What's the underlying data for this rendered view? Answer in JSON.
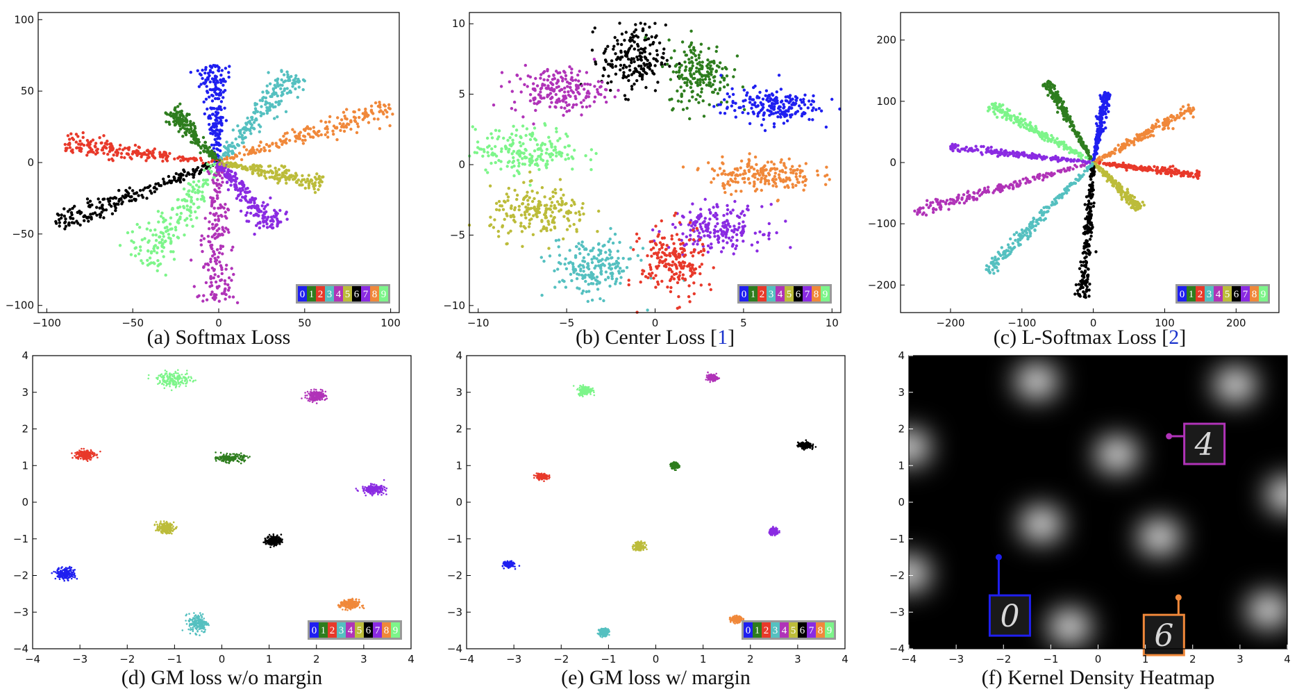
{
  "legend_digits": [
    "0",
    "1",
    "2",
    "3",
    "4",
    "5",
    "6",
    "7",
    "8",
    "9"
  ],
  "class_colors": [
    "#1f1ff0",
    "#2e7d1e",
    "#e8392a",
    "#55c0c0",
    "#b033b8",
    "#bcbc3a",
    "#000000",
    "#8a2be2",
    "#f0883a",
    "#7df58a"
  ],
  "chart_data": [
    {
      "id": "a",
      "type": "scatter",
      "caption": "(a) Softmax Loss",
      "caption_suffix": "",
      "xlim": [
        -105,
        105
      ],
      "ylim": [
        -105,
        105
      ],
      "xticks": [
        -100,
        -50,
        0,
        50,
        100
      ],
      "yticks": [
        100,
        50,
        0,
        -50,
        -100
      ],
      "tick_labels_x": [
        "−100",
        "−50",
        "0",
        "50",
        "100"
      ],
      "tick_labels_y": [
        "100",
        "50",
        "0",
        "−50",
        "−100"
      ],
      "legend": true,
      "clusters": [
        {
          "class": 0,
          "shape": "ray",
          "end": [
            -4,
            68
          ],
          "spread": 3.5
        },
        {
          "class": 3,
          "shape": "ray",
          "end": [
            45,
            63
          ],
          "spread": 4
        },
        {
          "class": 8,
          "shape": "ray",
          "end": [
            100,
            38
          ],
          "spread": 3.5
        },
        {
          "class": 1,
          "shape": "ray",
          "end": [
            -28,
            37
          ],
          "spread": 2.5
        },
        {
          "class": 2,
          "shape": "ray",
          "end": [
            -90,
            13
          ],
          "spread": 3
        },
        {
          "class": 6,
          "shape": "ray",
          "end": [
            -95,
            -42
          ],
          "spread": 3.5
        },
        {
          "class": 9,
          "shape": "ray",
          "end": [
            -45,
            -70
          ],
          "spread": 6
        },
        {
          "class": 4,
          "shape": "ray",
          "end": [
            -2,
            -98
          ],
          "spread": 5
        },
        {
          "class": 7,
          "shape": "ray",
          "end": [
            32,
            -46
          ],
          "spread": 4
        },
        {
          "class": 5,
          "shape": "ray",
          "end": [
            60,
            -15
          ],
          "spread": 3
        }
      ]
    },
    {
      "id": "b",
      "type": "scatter",
      "caption": "(b) Center Loss [",
      "caption_suffix": "1",
      "xlim": [
        -10.5,
        10.5
      ],
      "ylim": [
        -10.5,
        10.8
      ],
      "xticks": [
        -10,
        -5,
        0,
        5,
        10
      ],
      "yticks": [
        10,
        5,
        0,
        -5,
        -10
      ],
      "tick_labels_x": [
        "−10",
        "−5",
        "0",
        "5",
        "10"
      ],
      "tick_labels_y": [
        "10",
        "5",
        "0",
        "−5",
        "−10"
      ],
      "legend": true,
      "clusters": [
        {
          "class": 6,
          "shape": "blob",
          "center": [
            -1.2,
            7.5
          ],
          "spread": [
            0.9,
            1.2
          ]
        },
        {
          "class": 1,
          "shape": "blob",
          "center": [
            2.5,
            6.5
          ],
          "spread": [
            0.9,
            1.2
          ]
        },
        {
          "class": 4,
          "shape": "blob",
          "center": [
            -5.5,
            5.3
          ],
          "spread": [
            1.3,
            0.8
          ]
        },
        {
          "class": 0,
          "shape": "blob",
          "center": [
            6.5,
            4.2
          ],
          "spread": [
            1.4,
            0.6
          ]
        },
        {
          "class": 9,
          "shape": "blob",
          "center": [
            -7.2,
            1.0
          ],
          "spread": [
            1.5,
            0.8
          ]
        },
        {
          "class": 8,
          "shape": "blob",
          "center": [
            6.0,
            -0.7
          ],
          "spread": [
            1.5,
            0.6
          ]
        },
        {
          "class": 5,
          "shape": "blob",
          "center": [
            -6.5,
            -3.5
          ],
          "spread": [
            1.4,
            0.9
          ]
        },
        {
          "class": 7,
          "shape": "blob",
          "center": [
            3.5,
            -4.5
          ],
          "spread": [
            1.3,
            0.8
          ]
        },
        {
          "class": 3,
          "shape": "blob",
          "center": [
            -3.5,
            -7.3
          ],
          "spread": [
            1.2,
            1.0
          ]
        },
        {
          "class": 2,
          "shape": "blob",
          "center": [
            1.0,
            -7.0
          ],
          "spread": [
            0.9,
            1.3
          ]
        }
      ]
    },
    {
      "id": "c",
      "type": "scatter",
      "caption": "(c) L-Softmax Loss [",
      "caption_suffix": "2",
      "xlim": [
        -270,
        260
      ],
      "ylim": [
        -245,
        245
      ],
      "xticks": [
        -200,
        -100,
        0,
        100,
        200
      ],
      "yticks": [
        200,
        100,
        0,
        -100,
        -200
      ],
      "tick_labels_x": [
        "−200",
        "−100",
        "0",
        "100",
        "200"
      ],
      "tick_labels_y": [
        "200",
        "100",
        "0",
        "−100",
        "−200"
      ],
      "legend": true,
      "clusters": [
        {
          "class": 4,
          "shape": "ray",
          "end": [
            -250,
            -80
          ],
          "spread": 4
        },
        {
          "class": 7,
          "shape": "ray",
          "end": [
            -200,
            25
          ],
          "spread": 3
        },
        {
          "class": 9,
          "shape": "ray",
          "end": [
            -145,
            95
          ],
          "spread": 4
        },
        {
          "class": 1,
          "shape": "ray",
          "end": [
            -65,
            132
          ],
          "spread": 3
        },
        {
          "class": 0,
          "shape": "ray",
          "end": [
            20,
            115
          ],
          "spread": 3
        },
        {
          "class": 8,
          "shape": "ray",
          "end": [
            140,
            90
          ],
          "spread": 4
        },
        {
          "class": 2,
          "shape": "ray",
          "end": [
            150,
            -20
          ],
          "spread": 3
        },
        {
          "class": 5,
          "shape": "ray",
          "end": [
            65,
            -75
          ],
          "spread": 3
        },
        {
          "class": 6,
          "shape": "ray",
          "end": [
            -15,
            -220
          ],
          "spread": 4
        },
        {
          "class": 3,
          "shape": "ray",
          "end": [
            -150,
            -180
          ],
          "spread": 4
        }
      ]
    },
    {
      "id": "d",
      "type": "scatter",
      "caption": "(d) GM loss w/o margin",
      "caption_suffix": "",
      "xlim": [
        -4,
        4
      ],
      "ylim": [
        -4,
        4
      ],
      "xticks": [
        -4,
        -3,
        -2,
        -1,
        0,
        1,
        2,
        3,
        4
      ],
      "yticks": [
        4,
        3,
        2,
        1,
        0,
        -1,
        -2,
        -3,
        -4
      ],
      "tick_labels_x": [
        "−4",
        "−3",
        "−2",
        "−1",
        "0",
        "1",
        "2",
        "3",
        "4"
      ],
      "tick_labels_y": [
        "4",
        "3",
        "2",
        "1",
        "0",
        "−1",
        "−2",
        "−3",
        "−4"
      ],
      "legend": true,
      "clusters": [
        {
          "class": 9,
          "shape": "blob",
          "center": [
            -1.0,
            3.35
          ],
          "spread": [
            0.18,
            0.1
          ]
        },
        {
          "class": 4,
          "shape": "blob",
          "center": [
            2.0,
            2.9
          ],
          "spread": [
            0.1,
            0.07
          ]
        },
        {
          "class": 2,
          "shape": "blob",
          "center": [
            -2.9,
            1.3
          ],
          "spread": [
            0.1,
            0.07
          ]
        },
        {
          "class": 1,
          "shape": "blob",
          "center": [
            0.2,
            1.2
          ],
          "spread": [
            0.14,
            0.05
          ]
        },
        {
          "class": 7,
          "shape": "blob",
          "center": [
            3.2,
            0.35
          ],
          "spread": [
            0.12,
            0.06
          ]
        },
        {
          "class": 5,
          "shape": "blob",
          "center": [
            -1.2,
            -0.7
          ],
          "spread": [
            0.09,
            0.07
          ]
        },
        {
          "class": 6,
          "shape": "blob",
          "center": [
            1.1,
            -1.05
          ],
          "spread": [
            0.08,
            0.07
          ]
        },
        {
          "class": 0,
          "shape": "blob",
          "center": [
            -3.3,
            -1.95
          ],
          "spread": [
            0.1,
            0.08
          ]
        },
        {
          "class": 8,
          "shape": "blob",
          "center": [
            2.7,
            -2.8
          ],
          "spread": [
            0.1,
            0.07
          ]
        },
        {
          "class": 3,
          "shape": "blob",
          "center": [
            -0.5,
            -3.3
          ],
          "spread": [
            0.1,
            0.13
          ]
        }
      ]
    },
    {
      "id": "e",
      "type": "scatter",
      "caption": "(e) GM loss w/ margin",
      "caption_suffix": "",
      "xlim": [
        -4,
        4
      ],
      "ylim": [
        -4,
        4
      ],
      "xticks": [
        -4,
        -3,
        -2,
        -1,
        0,
        1,
        2,
        3,
        4
      ],
      "yticks": [
        4,
        3,
        2,
        1,
        0,
        -1,
        -2,
        -3,
        -4
      ],
      "tick_labels_x": [
        "−4",
        "−3",
        "−2",
        "−1",
        "0",
        "1",
        "2",
        "3",
        "4"
      ],
      "tick_labels_y": [
        "4",
        "3",
        "2",
        "1",
        "0",
        "−1",
        "−2",
        "−3",
        "−4"
      ],
      "legend": true,
      "clusters": [
        {
          "class": 9,
          "shape": "blob",
          "center": [
            -1.5,
            3.05
          ],
          "spread": [
            0.07,
            0.06
          ]
        },
        {
          "class": 4,
          "shape": "blob",
          "center": [
            1.2,
            3.4
          ],
          "spread": [
            0.05,
            0.04
          ]
        },
        {
          "class": 6,
          "shape": "blob",
          "center": [
            3.15,
            1.55
          ],
          "spread": [
            0.07,
            0.04
          ]
        },
        {
          "class": 1,
          "shape": "blob",
          "center": [
            0.4,
            1.0
          ],
          "spread": [
            0.04,
            0.04
          ]
        },
        {
          "class": 2,
          "shape": "blob",
          "center": [
            -2.4,
            0.7
          ],
          "spread": [
            0.06,
            0.04
          ]
        },
        {
          "class": 7,
          "shape": "blob",
          "center": [
            2.5,
            -0.8
          ],
          "spread": [
            0.05,
            0.04
          ]
        },
        {
          "class": 5,
          "shape": "blob",
          "center": [
            -0.35,
            -1.2
          ],
          "spread": [
            0.05,
            0.05
          ]
        },
        {
          "class": 0,
          "shape": "blob",
          "center": [
            -3.1,
            -1.7
          ],
          "spread": [
            0.05,
            0.04
          ]
        },
        {
          "class": 8,
          "shape": "blob",
          "center": [
            1.7,
            -3.2
          ],
          "spread": [
            0.06,
            0.04
          ]
        },
        {
          "class": 3,
          "shape": "blob",
          "center": [
            -1.1,
            -3.55
          ],
          "spread": [
            0.05,
            0.05
          ]
        }
      ]
    },
    {
      "id": "f",
      "type": "heatmap",
      "caption": "(f) Kernel Density Heatmap",
      "caption_suffix": "",
      "xlim": [
        -4,
        4
      ],
      "ylim": [
        -4,
        4
      ],
      "xticks": [
        -4,
        -3,
        -2,
        -1,
        0,
        1,
        2,
        3,
        4
      ],
      "yticks": [
        4,
        3,
        2,
        1,
        0,
        -1,
        -2,
        -3,
        -4
      ],
      "tick_labels_x": [
        "−4",
        "−3",
        "−2",
        "−1",
        "0",
        "1",
        "2",
        "3",
        "4"
      ],
      "tick_labels_y": [
        "4",
        "3",
        "2",
        "1",
        "0",
        "−1",
        "−2",
        "−3",
        "−4"
      ],
      "legend": false,
      "kernel_centers": [
        [
          -1.3,
          3.3
        ],
        [
          2.9,
          3.2
        ],
        [
          -4.0,
          1.5
        ],
        [
          0.4,
          1.3
        ],
        [
          4.0,
          0.2
        ],
        [
          -1.2,
          -0.6
        ],
        [
          1.3,
          -0.95
        ],
        [
          -4.0,
          -1.95
        ],
        [
          -0.6,
          -3.4
        ],
        [
          3.6,
          -2.95
        ]
      ],
      "insets": [
        {
          "class": 4,
          "digit": "4",
          "point": [
            1.5,
            1.8
          ]
        },
        {
          "class": 0,
          "digit": "0",
          "point": [
            -2.1,
            -1.5
          ]
        },
        {
          "class": 8,
          "digit": "6",
          "point": [
            1.7,
            -2.6
          ]
        }
      ]
    }
  ]
}
